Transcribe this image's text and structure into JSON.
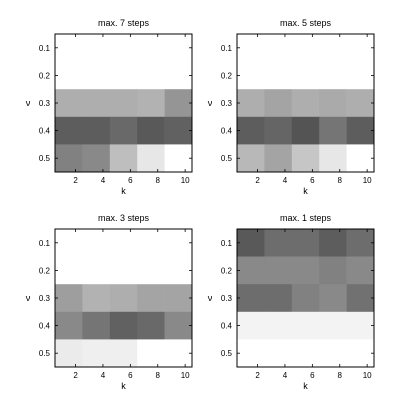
{
  "chart_data": [
    {
      "type": "heatmap",
      "title": "max. 7 steps",
      "xlabel": "k",
      "ylabel": "ν",
      "x_ticks": [
        "2",
        "4",
        "6",
        "8",
        "10"
      ],
      "y_ticks": [
        "0.1",
        "0.2",
        "0.3",
        "0.4",
        "0.5"
      ],
      "colormap": "gray (dark = high, white = low)",
      "values": [
        [
          0.0,
          0.0,
          0.0,
          0.0,
          0.0
        ],
        [
          0.0,
          0.0,
          0.0,
          0.0,
          0.0
        ],
        [
          0.4,
          0.4,
          0.4,
          0.38,
          0.52
        ],
        [
          0.8,
          0.8,
          0.74,
          0.82,
          0.78
        ],
        [
          0.62,
          0.58,
          0.32,
          0.12,
          0.0
        ]
      ]
    },
    {
      "type": "heatmap",
      "title": "max. 5 steps",
      "xlabel": "k",
      "ylabel": "ν",
      "x_ticks": [
        "2",
        "4",
        "6",
        "8",
        "10"
      ],
      "y_ticks": [
        "0.1",
        "0.2",
        "0.3",
        "0.4",
        "0.5"
      ],
      "colormap": "gray (dark = high, white = low)",
      "values": [
        [
          0.0,
          0.0,
          0.0,
          0.0,
          0.0
        ],
        [
          0.0,
          0.0,
          0.0,
          0.0,
          0.0
        ],
        [
          0.4,
          0.45,
          0.4,
          0.42,
          0.4
        ],
        [
          0.8,
          0.76,
          0.84,
          0.68,
          0.8
        ],
        [
          0.35,
          0.45,
          0.28,
          0.12,
          0.0
        ]
      ]
    },
    {
      "type": "heatmap",
      "title": "max. 3 steps",
      "xlabel": "k",
      "ylabel": "ν",
      "x_ticks": [
        "2",
        "4",
        "6",
        "8",
        "10"
      ],
      "y_ticks": [
        "0.1",
        "0.2",
        "0.3",
        "0.4",
        "0.5"
      ],
      "colormap": "gray (dark = high, white = low)",
      "values": [
        [
          0.0,
          0.0,
          0.0,
          0.0,
          0.0
        ],
        [
          0.0,
          0.0,
          0.0,
          0.0,
          0.0
        ],
        [
          0.48,
          0.38,
          0.4,
          0.45,
          0.45
        ],
        [
          0.58,
          0.68,
          0.78,
          0.74,
          0.58
        ],
        [
          0.1,
          0.08,
          0.08,
          0.0,
          0.0
        ]
      ]
    },
    {
      "type": "heatmap",
      "title": "max. 1 steps",
      "xlabel": "k",
      "ylabel": "ν",
      "x_ticks": [
        "2",
        "4",
        "6",
        "8",
        "10"
      ],
      "y_ticks": [
        "0.1",
        "0.2",
        "0.3",
        "0.4",
        "0.5"
      ],
      "colormap": "gray (dark = high, white = low)",
      "values": [
        [
          0.82,
          0.72,
          0.72,
          0.8,
          0.72
        ],
        [
          0.58,
          0.58,
          0.58,
          0.62,
          0.58
        ],
        [
          0.72,
          0.72,
          0.62,
          0.58,
          0.7
        ],
        [
          0.06,
          0.06,
          0.06,
          0.06,
          0.06
        ],
        [
          0.0,
          0.0,
          0.0,
          0.0,
          0.0
        ]
      ]
    }
  ]
}
